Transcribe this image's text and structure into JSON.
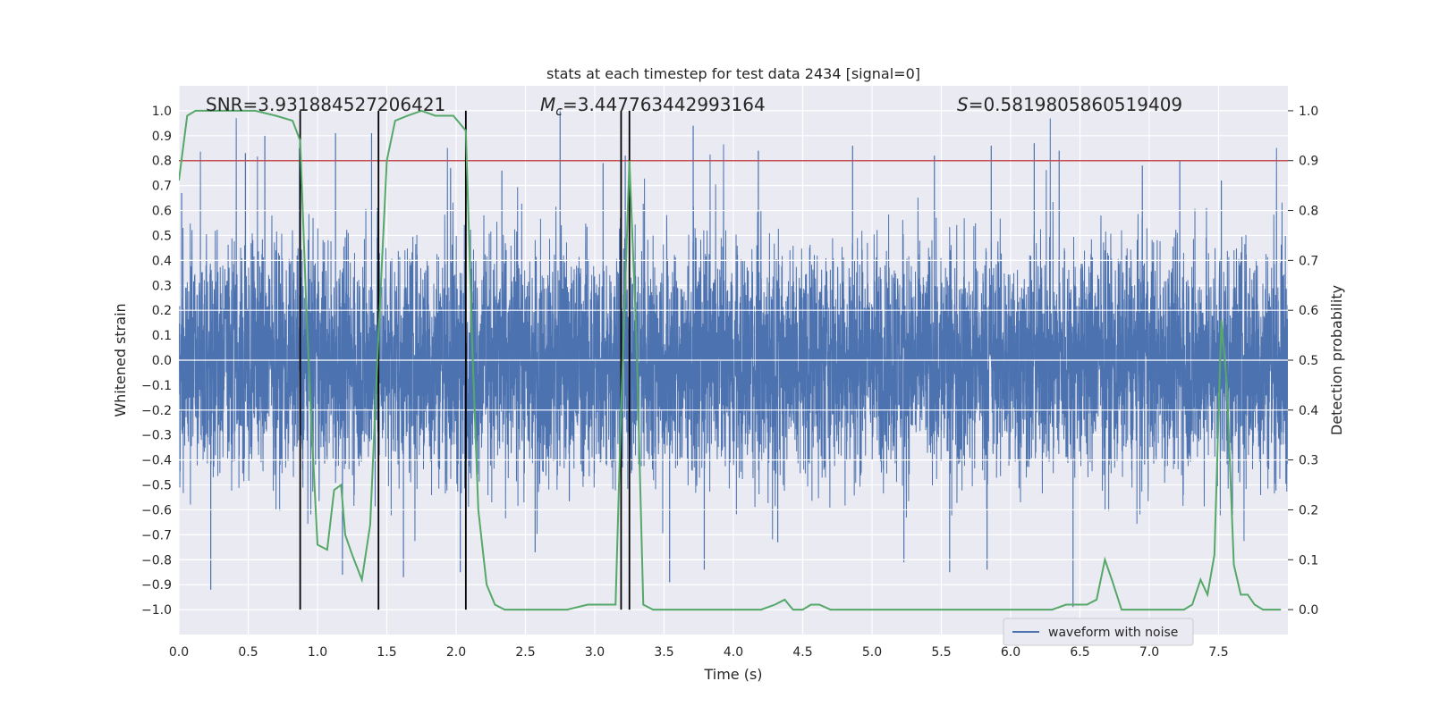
{
  "chart_data": {
    "type": "line",
    "title": "stats at each timestep for test data 2434 [signal=0]",
    "xlabel": "Time (s)",
    "ylabel": "Whitened strain",
    "y2label": "Detection probability",
    "xlim": [
      0.0,
      8.0
    ],
    "ylim": [
      -1.1,
      1.1
    ],
    "y2lim": [
      -0.05,
      1.05
    ],
    "xticks": [
      "0.0",
      "0.5",
      "1.0",
      "1.5",
      "2.0",
      "2.5",
      "3.0",
      "3.5",
      "4.0",
      "4.5",
      "5.0",
      "5.5",
      "6.0",
      "6.5",
      "7.0",
      "7.5"
    ],
    "yticks": [
      "-1.0",
      "-0.9",
      "-0.8",
      "-0.7",
      "-0.6",
      "-0.5",
      "-0.4",
      "-0.3",
      "-0.2",
      "-0.1",
      "0.0",
      "0.1",
      "0.2",
      "0.3",
      "0.4",
      "0.5",
      "0.6",
      "0.7",
      "0.8",
      "0.9",
      "1.0"
    ],
    "y2ticks": [
      "0.0",
      "0.1",
      "0.2",
      "0.3",
      "0.4",
      "0.5",
      "0.6",
      "0.7",
      "0.8",
      "0.9",
      "1.0"
    ],
    "grid": true,
    "annotations": {
      "snr": "SNR=3.931884527206421",
      "mc_symbol": "M",
      "mc_sub": "c",
      "mc_value": "=3.447763442993164",
      "s_symbol": "S",
      "s_value": "=0.5819805860519409"
    },
    "legend": {
      "placement": "bottom-right",
      "entries": [
        "waveform with noise"
      ]
    },
    "threshold": {
      "value": 0.9,
      "axis": "right",
      "color": "#c44e52"
    },
    "vertical_lines": [
      0.875,
      1.44,
      2.07,
      3.19,
      3.25
    ],
    "waveform_peaks": [
      {
        "x": 0.02,
        "y": 0.67
      },
      {
        "x": 0.23,
        "y": -0.92
      },
      {
        "x": 0.48,
        "y": 0.83
      },
      {
        "x": 0.62,
        "y": 0.9
      },
      {
        "x": 0.87,
        "y": 0.85
      },
      {
        "x": 1.13,
        "y": 0.91
      },
      {
        "x": 1.18,
        "y": -0.86
      },
      {
        "x": 1.39,
        "y": 0.91
      },
      {
        "x": 1.62,
        "y": -0.87
      },
      {
        "x": 1.96,
        "y": 0.77
      },
      {
        "x": 2.03,
        "y": -0.85
      },
      {
        "x": 2.33,
        "y": 0.76
      },
      {
        "x": 2.57,
        "y": -0.77
      },
      {
        "x": 2.75,
        "y": 1.01
      },
      {
        "x": 3.06,
        "y": 0.79
      },
      {
        "x": 3.22,
        "y": 0.82
      },
      {
        "x": 3.54,
        "y": -0.89
      },
      {
        "x": 3.71,
        "y": 0.94
      },
      {
        "x": 3.79,
        "y": -0.84
      },
      {
        "x": 4.18,
        "y": 0.84
      },
      {
        "x": 4.32,
        "y": -0.73
      },
      {
        "x": 4.86,
        "y": 0.86
      },
      {
        "x": 5.23,
        "y": -0.81
      },
      {
        "x": 5.45,
        "y": 0.82
      },
      {
        "x": 5.56,
        "y": -0.85
      },
      {
        "x": 5.83,
        "y": -0.84
      },
      {
        "x": 5.86,
        "y": 0.86
      },
      {
        "x": 6.17,
        "y": 0.87
      },
      {
        "x": 6.35,
        "y": 0.84
      },
      {
        "x": 6.45,
        "y": -0.99
      },
      {
        "x": 6.95,
        "y": 0.78
      },
      {
        "x": 7.22,
        "y": 0.8
      },
      {
        "x": 7.52,
        "y": 0.72
      },
      {
        "x": 7.6,
        "y": -0.62
      }
    ],
    "series": [
      {
        "name": "waveform with noise",
        "axis": "left",
        "color": "#4c72b0",
        "note": "dense noisy strain trace; typical envelope about ±0.4"
      },
      {
        "axis": "right",
        "color": "#55a868",
        "x": [
          0.0,
          0.06,
          0.12,
          0.3,
          0.55,
          0.7,
          0.82,
          0.875,
          0.92,
          0.96,
          1.0,
          1.07,
          1.12,
          1.17,
          1.2,
          1.25,
          1.32,
          1.38,
          1.44,
          1.5,
          1.56,
          1.65,
          1.75,
          1.85,
          1.98,
          2.07,
          2.12,
          2.16,
          2.22,
          2.28,
          2.35,
          2.45,
          2.6,
          2.8,
          2.95,
          3.0,
          3.1,
          3.15,
          3.19,
          3.25,
          3.3,
          3.35,
          3.42,
          3.5,
          3.6,
          3.75,
          3.9,
          4.0,
          4.1,
          4.2,
          4.3,
          4.37,
          4.43,
          4.5,
          4.56,
          4.62,
          4.7,
          4.85,
          5.0,
          5.2,
          5.5,
          5.7,
          5.9,
          6.0,
          6.2,
          6.3,
          6.4,
          6.5,
          6.55,
          6.62,
          6.68,
          6.73,
          6.8,
          6.88,
          6.95,
          7.1,
          7.25,
          7.31,
          7.37,
          7.42,
          7.47,
          7.52,
          7.56,
          7.61,
          7.66,
          7.71,
          7.76,
          7.82,
          7.88,
          7.95
        ],
        "y": [
          0.86,
          0.99,
          1.0,
          1.0,
          1.0,
          0.99,
          0.98,
          0.94,
          0.6,
          0.35,
          0.13,
          0.12,
          0.24,
          0.25,
          0.15,
          0.11,
          0.06,
          0.17,
          0.55,
          0.9,
          0.98,
          0.99,
          1.0,
          0.99,
          0.99,
          0.96,
          0.5,
          0.2,
          0.05,
          0.01,
          0.0,
          0.0,
          0.0,
          0.0,
          0.01,
          0.01,
          0.01,
          0.01,
          0.4,
          0.9,
          0.55,
          0.01,
          0.0,
          0.0,
          0.0,
          0.0,
          0.0,
          0.0,
          0.0,
          0.0,
          0.01,
          0.02,
          0.0,
          0.0,
          0.01,
          0.01,
          0.0,
          0.0,
          0.0,
          0.0,
          0.0,
          0.0,
          0.0,
          0.0,
          0.0,
          0.0,
          0.01,
          0.01,
          0.01,
          0.02,
          0.1,
          0.06,
          0.0,
          0.0,
          0.0,
          0.0,
          0.0,
          0.01,
          0.06,
          0.03,
          0.11,
          0.58,
          0.45,
          0.09,
          0.03,
          0.03,
          0.01,
          0.0,
          0.0,
          0.0
        ]
      }
    ]
  }
}
